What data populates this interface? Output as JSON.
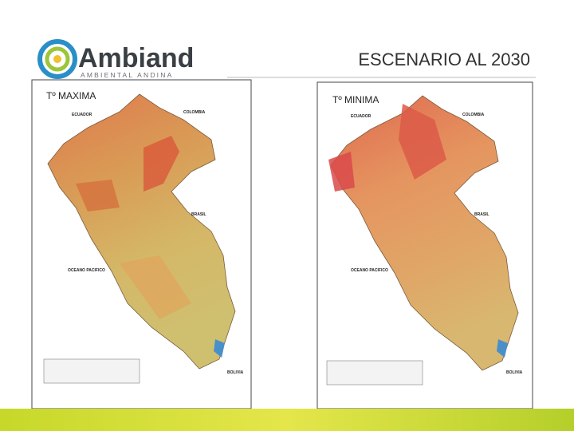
{
  "header": {
    "logo_name": "Ambiand",
    "logo_tagline": "AMBIENTAL ANDINA",
    "title": "ESCENARIO AL 2030"
  },
  "maps": [
    {
      "label": "Tº MAXIMA",
      "places": [
        "ECUADOR",
        "COLOMBIA",
        "BRASIL",
        "OCEANO PACIFICO",
        "BOLIVIA"
      ]
    },
    {
      "label": "Tº MINIMA",
      "places": [
        "ECUADOR",
        "COLOMBIA",
        "BRASIL",
        "OCEANO PACIFICO",
        "BOLIVIA"
      ]
    }
  ]
}
